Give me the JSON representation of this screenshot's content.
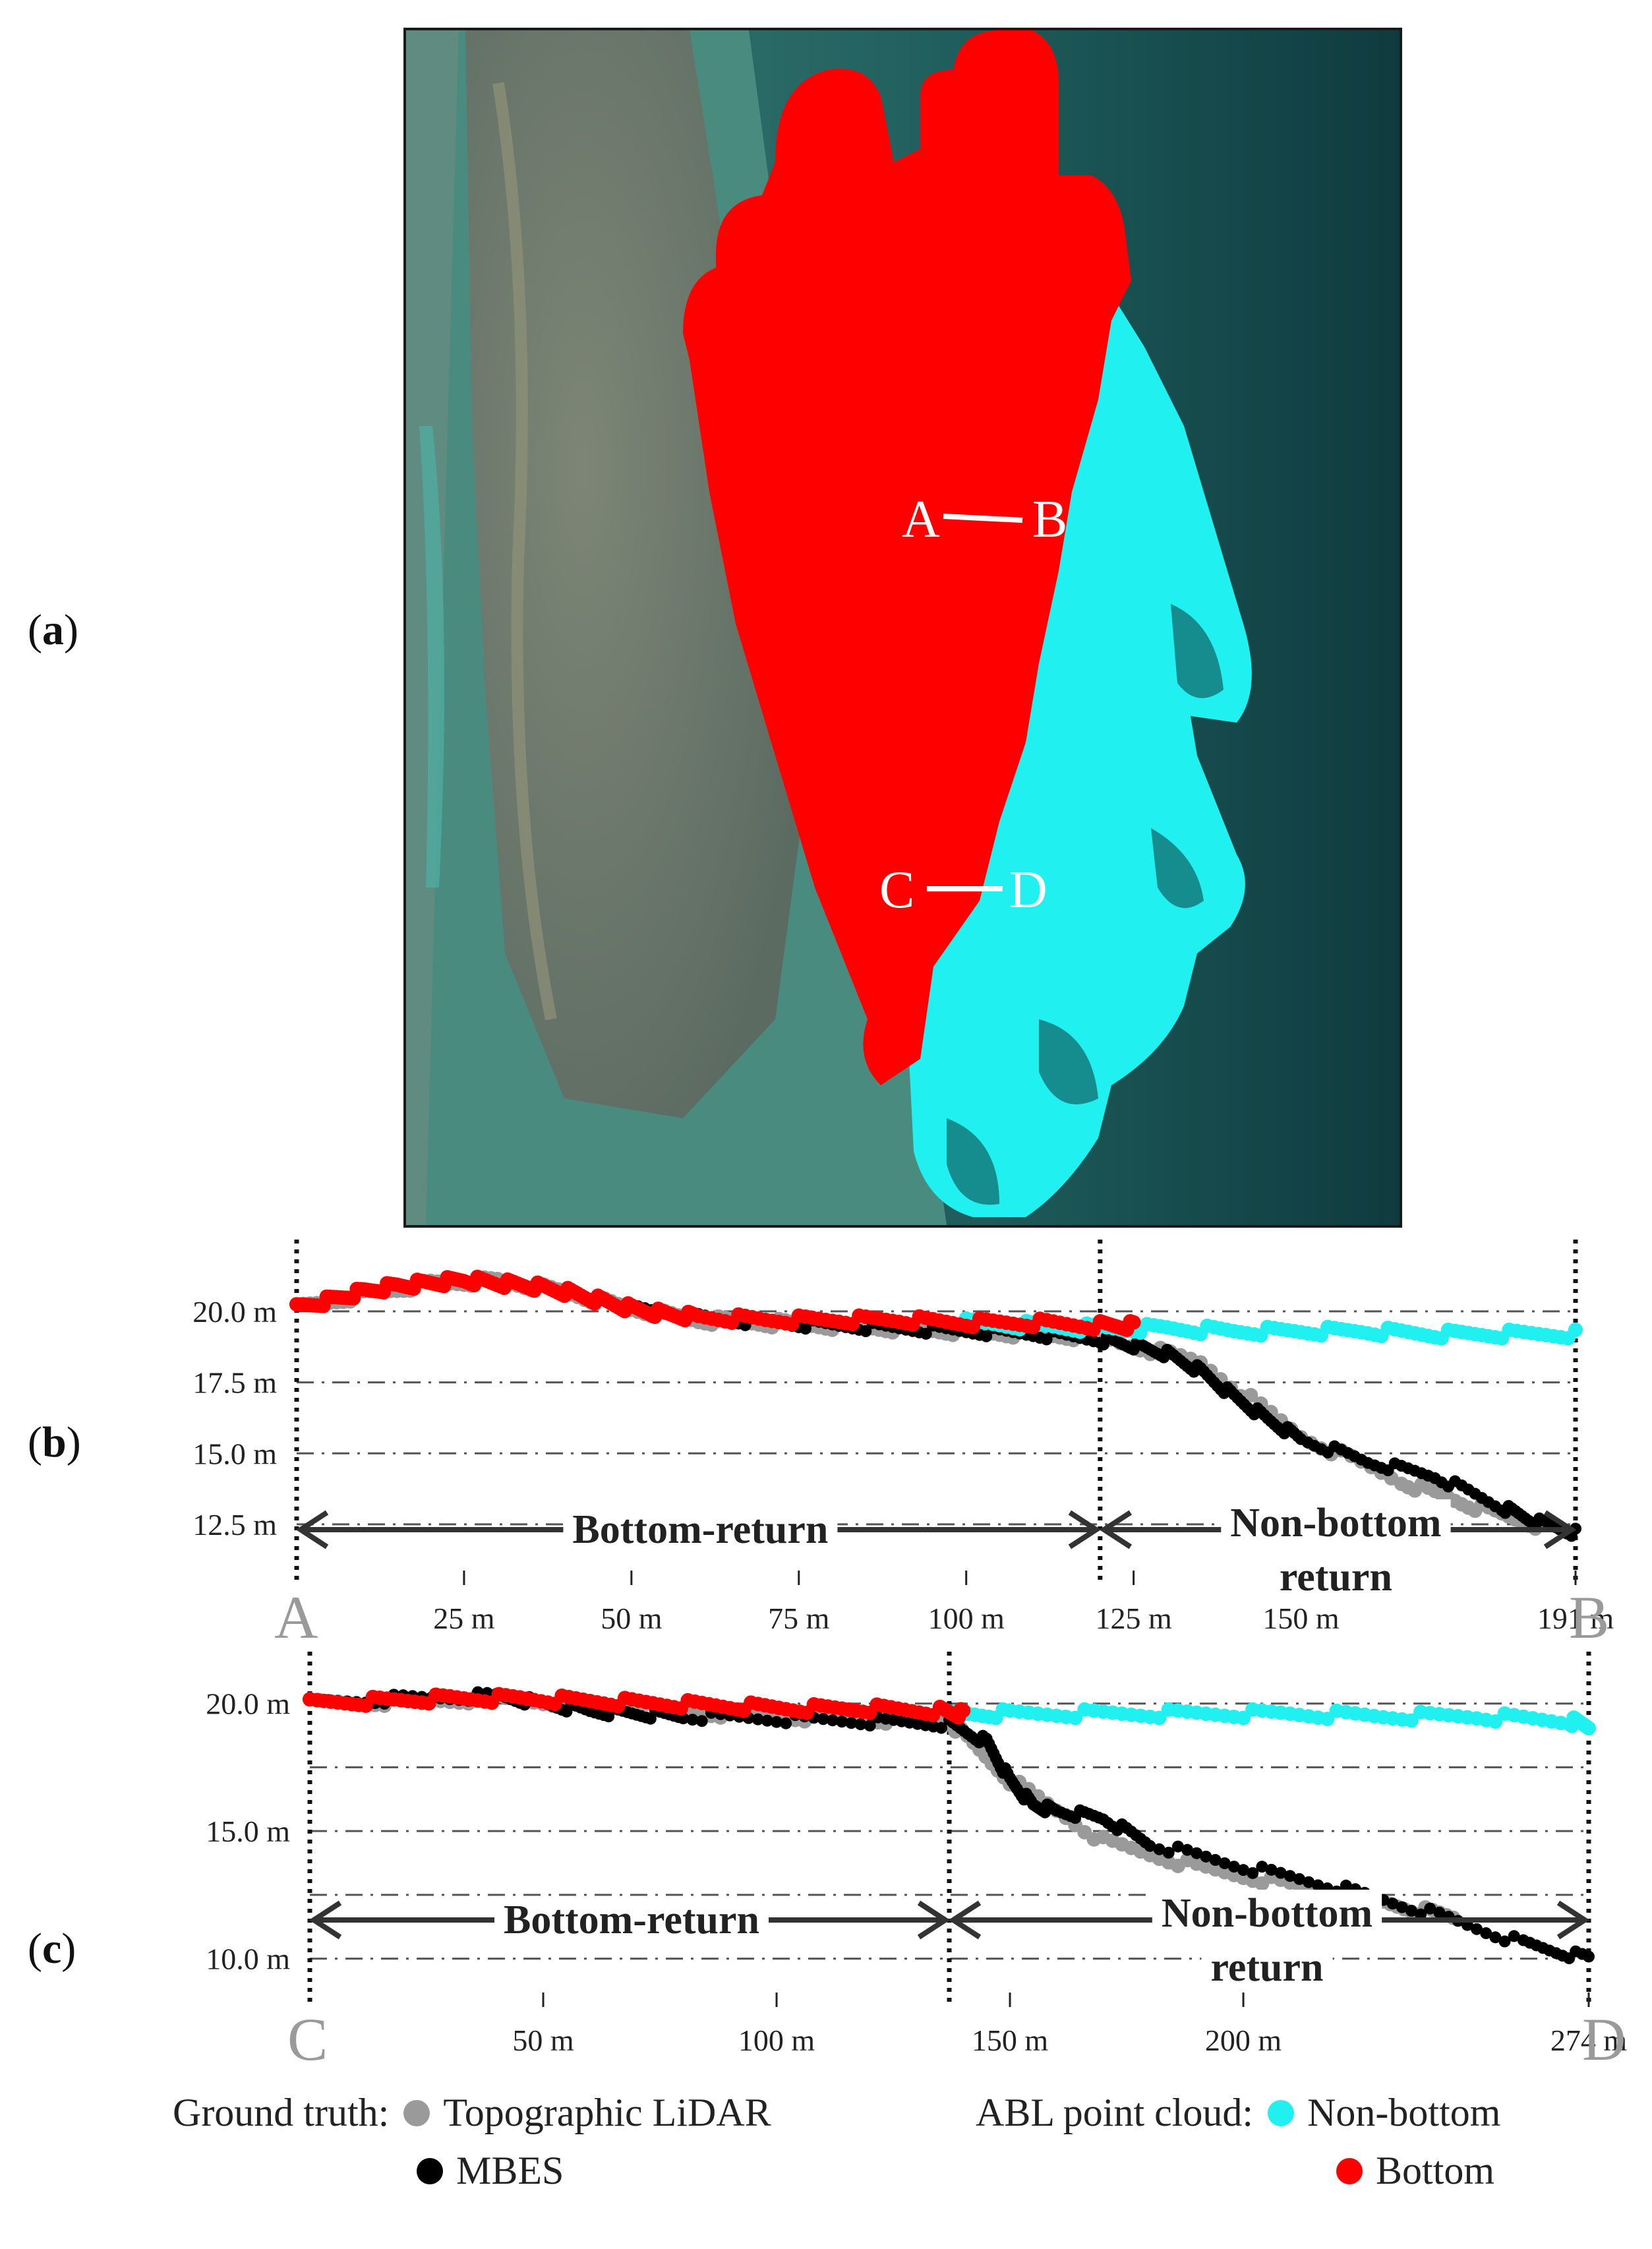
{
  "panels": {
    "a_letter": "a",
    "b_letter": "b",
    "c_letter": "c"
  },
  "map": {
    "labels": {
      "a": "A",
      "b": "B",
      "c": "C",
      "d": "D"
    }
  },
  "colors": {
    "bottom": "#ff0000",
    "non_bottom": "#20f0f0",
    "topographic_lidar": "#9a9a9a",
    "mbes": "#000000",
    "profile_letter": "#9a9a9a"
  },
  "chart_data": [
    {
      "type": "scatter",
      "id": "profile-ab",
      "start_label": "A",
      "end_label": "B",
      "y_ticks": [
        "20.0 m",
        "17.5 m",
        "15.0 m",
        "12.5 m"
      ],
      "y_tick_values": [
        20.0,
        17.5,
        15.0,
        12.5
      ],
      "x_ticks": [
        "25 m",
        "50 m",
        "75 m",
        "100 m",
        "125 m",
        "150 m",
        "191 m"
      ],
      "x_tick_values": [
        25,
        50,
        75,
        100,
        125,
        150,
        191
      ],
      "xlim": [
        0,
        191
      ],
      "ylim": [
        11.5,
        21.6
      ],
      "boundary_x": 120,
      "annotations": {
        "bottom_return": "Bottom-return",
        "non_bottom_line1": "Non-bottom",
        "non_bottom_line2": "return"
      },
      "series": [
        {
          "name": "Topographic LiDAR",
          "x": [
            0,
            10,
            20,
            30,
            40,
            50,
            60,
            70,
            80,
            90,
            100,
            110,
            120,
            135,
            150,
            165,
            175,
            185
          ],
          "y": [
            20.1,
            20.6,
            21.0,
            21.1,
            20.7,
            20.1,
            19.7,
            19.6,
            19.5,
            19.4,
            19.3,
            19.2,
            19.1,
            18.2,
            15.6,
            14.0,
            13.2,
            12.5
          ]
        },
        {
          "name": "MBES",
          "x": [
            50,
            60,
            70,
            80,
            90,
            100,
            110,
            120,
            125,
            130,
            135,
            140,
            145,
            150,
            160,
            170,
            180,
            185,
            191
          ],
          "y": [
            20.1,
            19.8,
            19.6,
            19.5,
            19.4,
            19.3,
            19.2,
            19.0,
            18.8,
            18.5,
            17.9,
            17.0,
            16.2,
            15.5,
            14.7,
            14.2,
            13.1,
            12.6,
            12.2
          ]
        },
        {
          "name": "Bottom",
          "x": [
            0,
            5,
            10,
            15,
            20,
            25,
            30,
            35,
            40,
            45,
            50,
            55,
            60,
            70,
            80,
            90,
            100,
            110,
            120,
            125
          ],
          "y": [
            20.1,
            20.4,
            20.7,
            20.9,
            21.0,
            21.1,
            21.0,
            20.9,
            20.7,
            20.4,
            20.1,
            19.9,
            19.8,
            19.7,
            19.7,
            19.7,
            19.6,
            19.6,
            19.5,
            19.5
          ]
        },
        {
          "name": "Non-bottom",
          "x": [
            100,
            110,
            120,
            130,
            140,
            150,
            160,
            170,
            180,
            191
          ],
          "y": [
            19.6,
            19.5,
            19.4,
            19.4,
            19.3,
            19.3,
            19.3,
            19.2,
            19.2,
            19.2
          ]
        }
      ]
    },
    {
      "type": "scatter",
      "id": "profile-cd",
      "start_label": "C",
      "end_label": "D",
      "y_ticks": [
        "20.0 m",
        "15.0 m",
        "10.0 m"
      ],
      "y_tick_values": [
        20.0,
        15.0,
        10.0
      ],
      "y_grid_values": [
        20.0,
        17.5,
        15.0,
        12.5,
        10.0
      ],
      "x_ticks": [
        "50 m",
        "100 m",
        "150 m",
        "200 m",
        "274 m"
      ],
      "x_tick_values": [
        50,
        100,
        150,
        200,
        274
      ],
      "xlim": [
        0,
        274
      ],
      "ylim": [
        9.5,
        21.0
      ],
      "boundary_x": 137,
      "annotations": {
        "bottom_return": "Bottom-return",
        "non_bottom_line1": "Non-bottom",
        "non_bottom_line2": "return"
      },
      "series": [
        {
          "name": "Topographic LiDAR",
          "x": [
            0,
            20,
            40,
            60,
            80,
            100,
            120,
            137,
            150,
            170,
            190,
            210,
            230,
            245
          ],
          "y": [
            20.0,
            20.1,
            20.2,
            20.0,
            19.7,
            19.5,
            19.4,
            19.3,
            17.0,
            14.6,
            13.6,
            12.9,
            12.2,
            11.6
          ]
        },
        {
          "name": "MBES",
          "x": [
            0,
            20,
            40,
            50,
            60,
            70,
            80,
            100,
            120,
            137,
            145,
            150,
            155,
            160,
            170,
            180,
            200,
            220,
            240,
            260,
            274
          ],
          "y": [
            20.0,
            20.2,
            20.3,
            20.0,
            19.7,
            19.6,
            19.5,
            19.4,
            19.3,
            19.2,
            18.5,
            17.0,
            16.0,
            15.8,
            15.5,
            14.5,
            13.6,
            12.8,
            11.8,
            10.6,
            10.0
          ]
        },
        {
          "name": "Bottom",
          "x": [
            0,
            15,
            30,
            45,
            60,
            75,
            90,
            105,
            120,
            135,
            140
          ],
          "y": [
            20.0,
            20.1,
            20.2,
            20.2,
            20.1,
            20.0,
            19.9,
            19.8,
            19.8,
            19.7,
            19.6
          ]
        },
        {
          "name": "Non-bottom",
          "x": [
            135,
            150,
            170,
            190,
            210,
            230,
            250,
            270,
            274
          ],
          "y": [
            19.6,
            19.6,
            19.6,
            19.6,
            19.6,
            19.5,
            19.5,
            19.3,
            19.2
          ]
        }
      ]
    }
  ],
  "legend": {
    "ground_truth_label": "Ground truth:",
    "topographic_lidar": "Topographic LiDAR",
    "mbes": "MBES",
    "abl_label": "ABL point cloud:",
    "non_bottom": "Non-bottom",
    "bottom": "Bottom"
  }
}
